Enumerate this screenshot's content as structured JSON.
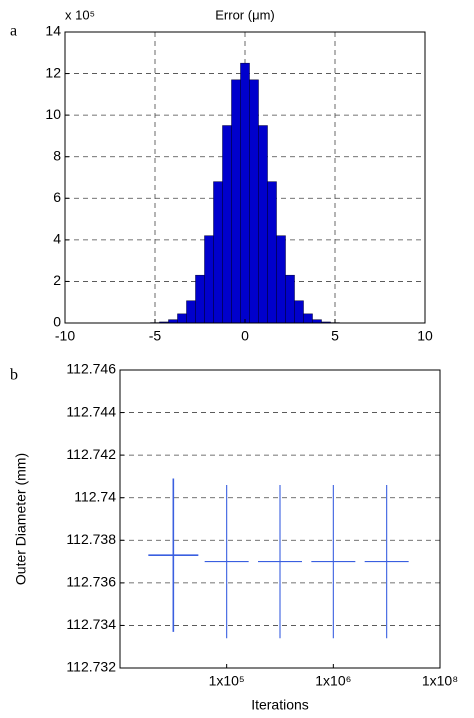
{
  "chart_data": [
    {
      "type": "histogram",
      "label": "a",
      "title": "Error (μm)",
      "y_multiplier": "x 10⁵",
      "bins": [
        -6.75,
        -6.25,
        -5.75,
        -5.25,
        -4.75,
        -4.25,
        -3.75,
        -3.25,
        -2.75,
        -2.25,
        -1.75,
        -1.25,
        -0.75,
        -0.25,
        0.25,
        0.75,
        1.25,
        1.75,
        2.25,
        2.75,
        3.25,
        3.75,
        4.25,
        4.75,
        5.25,
        5.75,
        6.25,
        6.75
      ],
      "values": [
        0.002,
        0.005,
        0.01,
        0.02,
        0.05,
        0.16,
        0.44,
        1.07,
        2.3,
        4.2,
        6.8,
        9.5,
        11.7,
        12.5,
        11.7,
        9.5,
        6.8,
        4.2,
        2.3,
        1.07,
        0.44,
        0.16,
        0.05,
        0.02,
        0.01,
        0.005,
        0.002
      ],
      "color": "#0000cc",
      "xlim": [
        -10,
        10
      ],
      "xticks": [
        -10,
        -5,
        0,
        5,
        10
      ],
      "ylim": [
        0,
        14
      ],
      "yticks": [
        0,
        2,
        4,
        6,
        8,
        10,
        12,
        14
      ],
      "grid": "both"
    },
    {
      "type": "errorbar",
      "label": "b",
      "ylabel": "Outer Diameter (mm)",
      "xlabel": "Iterations",
      "x": [
        1,
        2,
        3,
        4,
        5
      ],
      "values": [
        112.7373,
        112.737,
        112.737,
        112.737,
        112.737
      ],
      "errors": [
        0.0036,
        0.0036,
        0.0036,
        0.0036,
        0.0036
      ],
      "color": "#3a5fe0",
      "xlim": [
        0,
        6
      ],
      "xticks": [
        {
          "value": 2,
          "label": "1x10⁵"
        },
        {
          "value": 4,
          "label": "1x10⁶"
        },
        {
          "value": 6,
          "label": "1x10⁸"
        }
      ],
      "ylim": [
        112.732,
        112.746
      ],
      "yticks": [
        112.732,
        112.734,
        112.736,
        112.738,
        112.74,
        112.742,
        112.744,
        112.746
      ],
      "grid": "y"
    }
  ]
}
